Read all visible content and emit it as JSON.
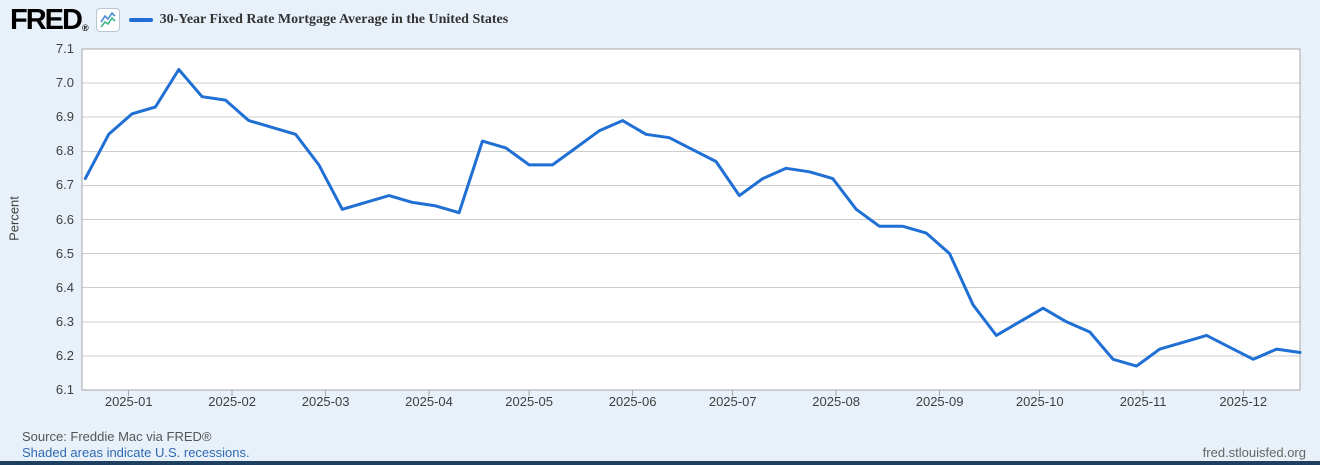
{
  "header": {
    "logo_text": "FRED",
    "registered_mark": "®",
    "series_title": "30-Year Fixed Rate Mortgage Average in the United States"
  },
  "chart_data": {
    "type": "line",
    "title": "30-Year Fixed Rate Mortgage Average in the United States",
    "xlabel": "",
    "ylabel": "Percent",
    "ylim": [
      6.1,
      7.1
    ],
    "y_ticks": [
      "7.1",
      "7.0",
      "6.9",
      "6.8",
      "6.7",
      "6.6",
      "6.5",
      "6.4",
      "6.3",
      "6.2",
      "6.1"
    ],
    "x_ticks": [
      "2025-01",
      "2025-02",
      "2025-03",
      "2025-04",
      "2025-05",
      "2025-06",
      "2025-07",
      "2025-08",
      "2025-09",
      "2025-10",
      "2025-11",
      "2025-12"
    ],
    "x_range": [
      "2024-12-18",
      "2025-12-18"
    ],
    "grid": "horizontal gridlines only",
    "legend_position": "top",
    "frequency": "weekly",
    "units": "Percent",
    "series": [
      {
        "name": "30-Year Fixed Rate Mortgage Average in the United States",
        "x": [
          "2024-12-19",
          "2024-12-26",
          "2025-01-02",
          "2025-01-09",
          "2025-01-16",
          "2025-01-23",
          "2025-01-30",
          "2025-02-06",
          "2025-02-13",
          "2025-02-20",
          "2025-02-27",
          "2025-03-06",
          "2025-03-13",
          "2025-03-20",
          "2025-03-27",
          "2025-04-03",
          "2025-04-10",
          "2025-04-17",
          "2025-04-24",
          "2025-05-01",
          "2025-05-08",
          "2025-05-15",
          "2025-05-22",
          "2025-05-29",
          "2025-06-05",
          "2025-06-12",
          "2025-06-18",
          "2025-06-26",
          "2025-07-03",
          "2025-07-10",
          "2025-07-17",
          "2025-07-24",
          "2025-07-31",
          "2025-08-07",
          "2025-08-14",
          "2025-08-21",
          "2025-08-28",
          "2025-09-04",
          "2025-09-11",
          "2025-09-18",
          "2025-09-25",
          "2025-10-02",
          "2025-10-09",
          "2025-10-16",
          "2025-10-23",
          "2025-10-30",
          "2025-11-06",
          "2025-11-13",
          "2025-11-20",
          "2025-11-26",
          "2025-12-04",
          "2025-12-11",
          "2025-12-18"
        ],
        "values": [
          6.72,
          6.85,
          6.91,
          6.93,
          7.04,
          6.96,
          6.95,
          6.89,
          6.87,
          6.85,
          6.76,
          6.63,
          6.65,
          6.67,
          6.65,
          6.64,
          6.62,
          6.83,
          6.81,
          6.76,
          6.76,
          6.81,
          6.86,
          6.89,
          6.85,
          6.84,
          6.81,
          6.77,
          6.67,
          6.72,
          6.75,
          6.74,
          6.72,
          6.63,
          6.58,
          6.58,
          6.56,
          6.5,
          6.35,
          6.26,
          6.3,
          6.34,
          6.3,
          6.27,
          6.19,
          6.17,
          6.22,
          6.24,
          6.26,
          6.23,
          6.19,
          6.22,
          6.21
        ]
      }
    ]
  },
  "footer": {
    "source": "Source: Freddie Mac via FRED®",
    "recession_note": "Shaded areas indicate U.S. recessions.",
    "site_url": "fred.stlouisfed.org"
  },
  "colors": {
    "background": "#e8f1f9",
    "plot_background": "#ffffff",
    "line": "#1f6fd4",
    "gridline": "#cccccc",
    "axis_border": "#a8a8a8",
    "icon_line_blue": "#4a90d9",
    "icon_line_green": "#41b58a",
    "bottom_bar": "#1f3f61",
    "link": "#3069b0",
    "source_text": "#565656"
  }
}
